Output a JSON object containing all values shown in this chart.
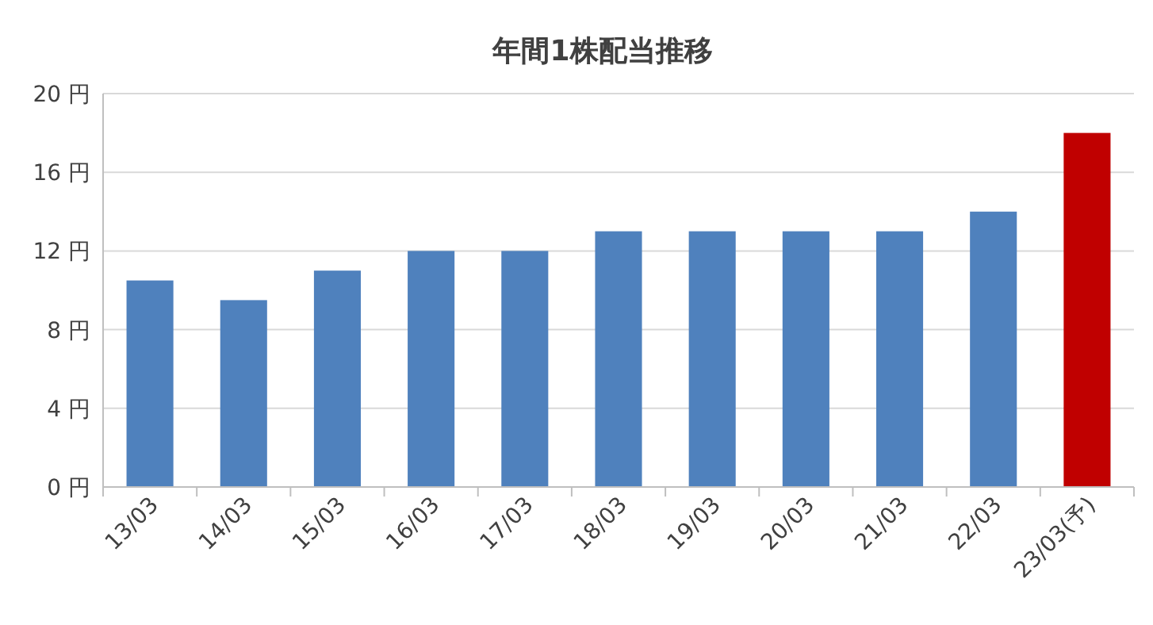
{
  "chart_data": {
    "type": "bar",
    "title": "年間1株配当推移",
    "categories": [
      "13/03",
      "14/03",
      "15/03",
      "16/03",
      "17/03",
      "18/03",
      "19/03",
      "20/03",
      "21/03",
      "22/03",
      "23/03(予)"
    ],
    "values": [
      10.5,
      9.5,
      11,
      12,
      12,
      13,
      13,
      13,
      13,
      14,
      18
    ],
    "colors": [
      "#4f81bd",
      "#4f81bd",
      "#4f81bd",
      "#4f81bd",
      "#4f81bd",
      "#4f81bd",
      "#4f81bd",
      "#4f81bd",
      "#4f81bd",
      "#4f81bd",
      "#c00000"
    ],
    "ylim": [
      0,
      20
    ],
    "yticks": [
      {
        "value": 0,
        "label": "0 円"
      },
      {
        "value": 4,
        "label": "4 円"
      },
      {
        "value": 8,
        "label": "8 円"
      },
      {
        "value": 12,
        "label": "12 円"
      },
      {
        "value": 16,
        "label": "16 円"
      },
      {
        "value": 20,
        "label": "20 円"
      }
    ],
    "grid": "y"
  }
}
